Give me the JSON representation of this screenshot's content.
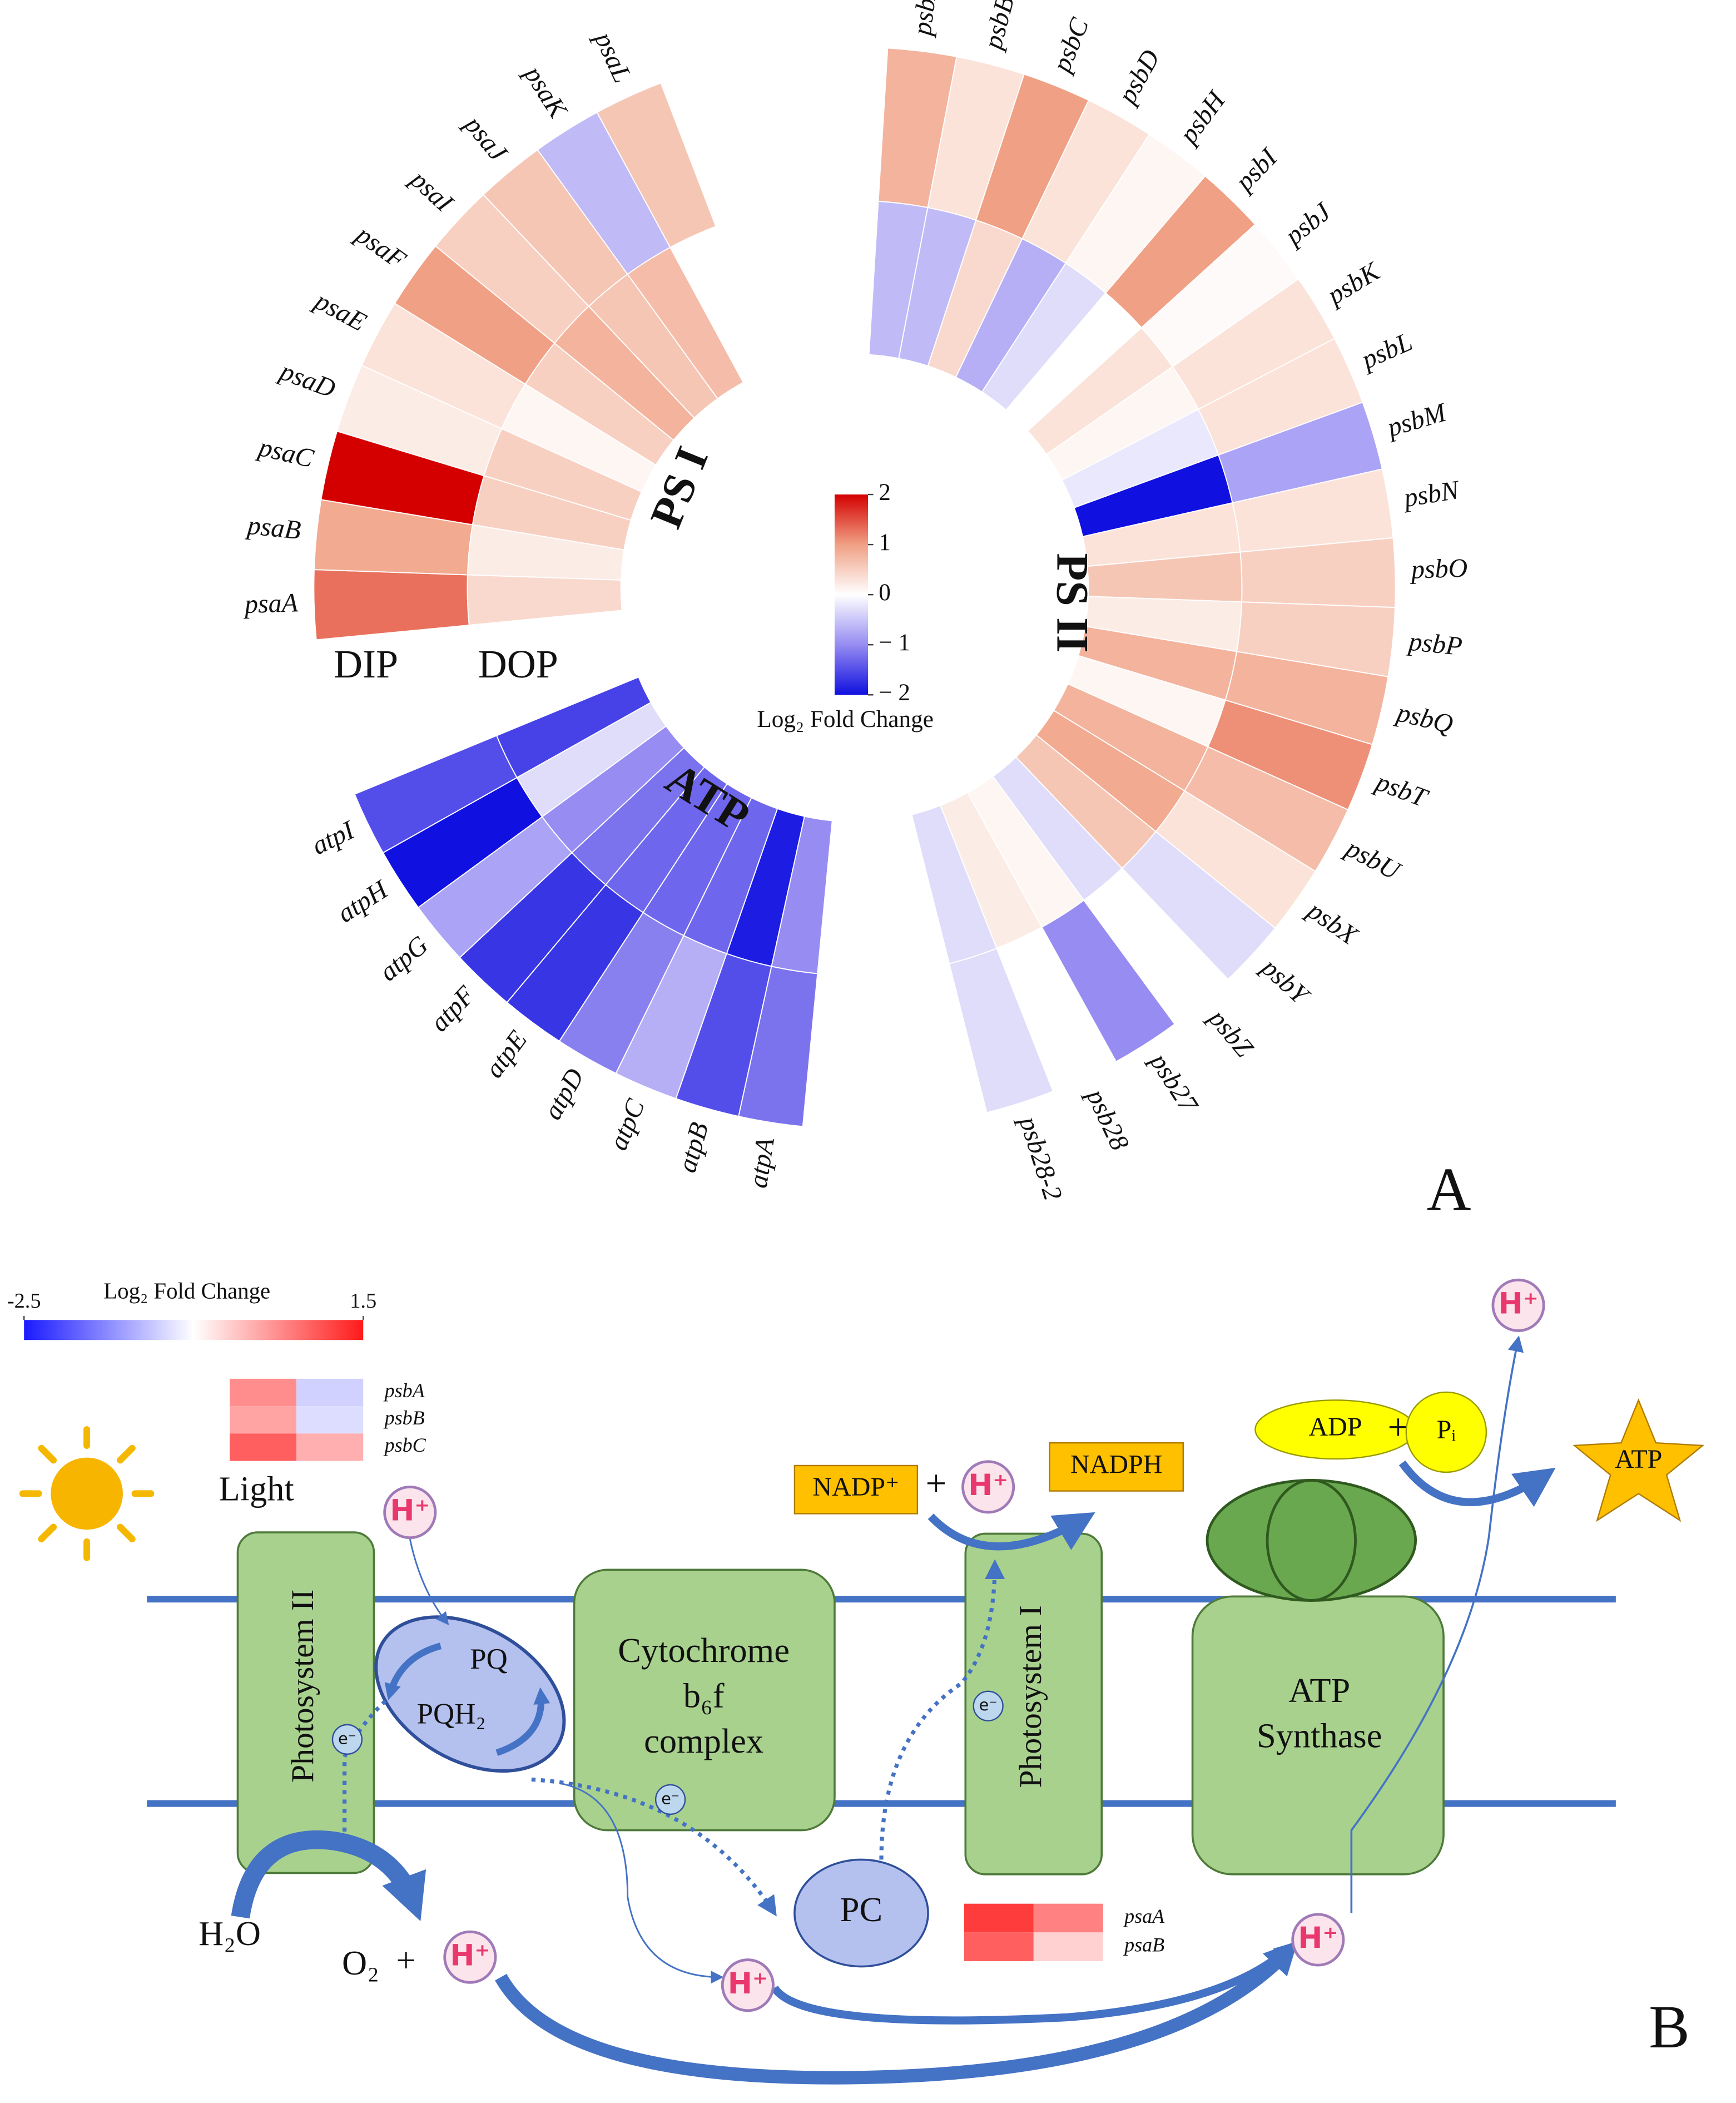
{
  "panel_a": {
    "type": "radial_heatmap",
    "panel_label": "A",
    "rings": [
      "DIP",
      "DOP"
    ],
    "groups": [
      {
        "name": "PS I",
        "genes": [
          "psaA",
          "psaB",
          "psaC",
          "psaD",
          "psaE",
          "psaF",
          "psaI",
          "psaJ",
          "psaK",
          "psaL"
        ],
        "values": [
          [
            1.3,
            0.4
          ],
          [
            0.9,
            0.2
          ],
          [
            2.0,
            0.5
          ],
          [
            0.2,
            0.5
          ],
          [
            0.3,
            0.1
          ],
          [
            1.0,
            0.5
          ],
          [
            0.5,
            0.8
          ],
          [
            0.6,
            0.6
          ],
          [
            -0.6,
            0.7
          ],
          [
            0.6,
            null
          ]
        ]
      },
      {
        "name": "PS II",
        "genes": [
          "psbA",
          "psbB",
          "psbC",
          "psbD",
          "psbH",
          "psbI",
          "psbJ",
          "psbK",
          "psbL",
          "psbM",
          "psbN",
          "psbO",
          "psbP",
          "psbQ",
          "psbT",
          "psbU",
          "psbX",
          "psbY",
          "psbZ",
          "psb27",
          "psb28",
          "psb28-2"
        ],
        "values": [
          [
            0.8,
            -0.6
          ],
          [
            0.3,
            -0.6
          ],
          [
            1.0,
            0.4
          ],
          [
            0.3,
            -0.7
          ],
          [
            0.1,
            -0.3
          ],
          [
            1.0,
            0.0
          ],
          [
            0.05,
            0.3
          ],
          [
            0.3,
            0.1
          ],
          [
            0.3,
            -0.2
          ],
          [
            -0.8,
            -2.0
          ],
          [
            0.3,
            0.3
          ],
          [
            0.5,
            0.6
          ],
          [
            0.5,
            0.2
          ],
          [
            0.8,
            0.8
          ],
          [
            1.1,
            0.1
          ],
          [
            0.7,
            0.8
          ],
          [
            0.3,
            0.9
          ],
          [
            -0.3,
            0.6
          ],
          [
            0.0,
            -0.3
          ],
          [
            -1.0,
            0.1
          ],
          [
            0.0,
            0.2
          ],
          [
            -0.3,
            -0.3
          ]
        ]
      },
      {
        "name": "ATP",
        "genes": [
          "atpA",
          "atpB",
          "atpC",
          "atpD",
          "atpE",
          "atpF",
          "atpG",
          "atpH",
          "atpI"
        ],
        "values": [
          [
            -1.2,
            -1.0
          ],
          [
            -1.5,
            -1.9
          ],
          [
            -0.7,
            -1.3
          ],
          [
            -1.1,
            -1.3
          ],
          [
            -1.7,
            -1.3
          ],
          [
            -1.7,
            -1.2
          ],
          [
            -0.8,
            -1.0
          ],
          [
            -2.0,
            -0.3
          ],
          [
            -1.5,
            -1.6
          ]
        ]
      }
    ],
    "colorbar": {
      "title": "Log₂ Fold Change",
      "lim": [
        -2,
        2
      ],
      "ticks": [
        2,
        1,
        0,
        {
          "value": -1,
          "label": "− 1"
        },
        {
          "value": -2,
          "label": "− 2"
        }
      ],
      "colors": [
        "#d40000",
        "#f0a084",
        "#ffffff",
        "#968cf2",
        "#1010e0"
      ]
    }
  },
  "panel_b": {
    "panel_label": "B",
    "colorbar": {
      "title": "Log₂ Fold Change",
      "lim": [
        -2.5,
        1.5
      ],
      "ticks": [
        -2.5,
        1.5
      ],
      "colors": [
        "#1a1aff",
        "#ffffff",
        "#ff1a1a"
      ]
    },
    "heatmaps": [
      {
        "genes": [
          "psbA",
          "psbB",
          "psbC"
        ],
        "values": [
          [
            0.5,
            -0.9
          ],
          [
            0.3,
            -0.8
          ],
          [
            0.9,
            0.2
          ]
        ]
      },
      {
        "genes": [
          "psaA",
          "psaB"
        ],
        "values": [
          [
            1.2,
            0.6
          ],
          [
            0.9,
            -0.1
          ]
        ]
      }
    ],
    "labels": {
      "light": "Light",
      "photosystem_ii": "Photosystem II",
      "pq": "PQ",
      "pqh2": "PQH₂",
      "cytochrome": [
        "Cytochrome",
        "b₆f",
        "complex"
      ],
      "photosystem_i": "Photosystem I",
      "atp_synthase": [
        "ATP",
        "Synthase"
      ],
      "nadp": "NADP⁺",
      "nadph": "NADPH",
      "adp": "ADP",
      "pi": "Pᵢ",
      "atp": "ATP",
      "h2o": "H₂O",
      "o2": "O₂",
      "pc": "PC",
      "proton": "H⁺",
      "electron": "e⁻",
      "plus": "+"
    }
  }
}
